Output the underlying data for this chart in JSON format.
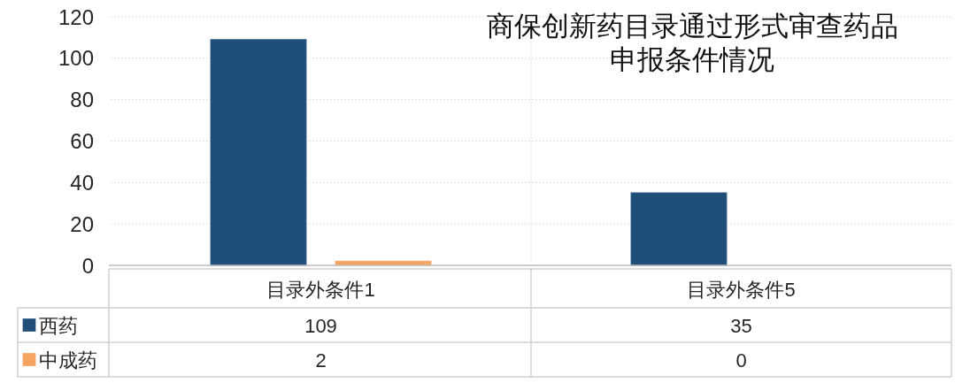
{
  "chart_data": {
    "type": "bar",
    "title": "商保创新药目录通过形式审查药品申报条件情况",
    "categories": [
      "目录外条件1",
      "目录外条件5"
    ],
    "series": [
      {
        "name": "西药",
        "color": "#1f4e79",
        "values": [
          109,
          35
        ]
      },
      {
        "name": "中成药",
        "color": "#f5a462",
        "values": [
          2,
          0
        ]
      }
    ],
    "ylim": [
      0,
      120
    ],
    "yticks": [
      0,
      20,
      40,
      60,
      80,
      100,
      120
    ],
    "grid": true,
    "legend": "bottom",
    "data_labels": true
  }
}
